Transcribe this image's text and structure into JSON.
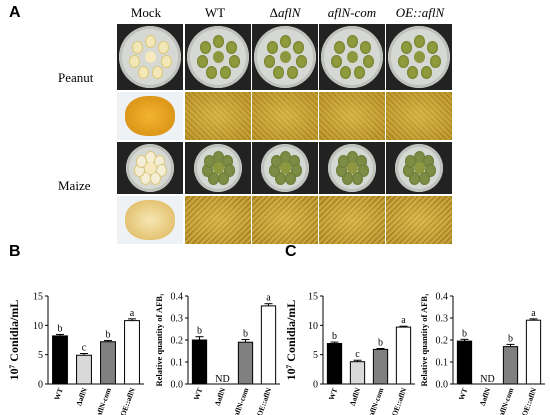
{
  "panels": {
    "a": "A",
    "b": "B",
    "c": "C"
  },
  "columns": [
    {
      "label": "Mock",
      "italic": false
    },
    {
      "label": "WT",
      "italic": false
    },
    {
      "label": "ΔaflN",
      "italic": true,
      "prefix": "Δ",
      "rest": "aflN"
    },
    {
      "label": "aflN-com",
      "italic": true
    },
    {
      "label": "OE::aflN",
      "italic": true
    }
  ],
  "rows": [
    "Peanut",
    "Maize"
  ],
  "chart_data": [
    {
      "panel": "B",
      "type": "bar",
      "ylabel": "10⁷ Conidia/mL",
      "categories": [
        "WT",
        "ΔaflN",
        "aflN-com",
        "OE::aflN"
      ],
      "values": [
        8.2,
        4.9,
        7.2,
        10.8
      ],
      "errors": [
        0.25,
        0.3,
        0.2,
        0.3
      ],
      "letters": [
        "b",
        "c",
        "b",
        "a"
      ],
      "fills": [
        "#000000",
        "#d9d9d9",
        "#808080",
        "#ffffff"
      ],
      "ylim": [
        0,
        15
      ],
      "yticks": [
        0,
        5,
        10,
        15
      ]
    },
    {
      "panel": "B",
      "type": "bar",
      "ylabel": "Relative quantity of AFB₁",
      "categories": [
        "WT",
        "ΔaflN",
        "aflN-com",
        "OE::aflN"
      ],
      "values": [
        0.2,
        null,
        0.19,
        0.355
      ],
      "errors": [
        0.015,
        0,
        0.012,
        0.01
      ],
      "letters": [
        "b",
        "",
        "b",
        "a"
      ],
      "labels_on_axis": [
        "",
        "ND",
        "",
        ""
      ],
      "fills": [
        "#000000",
        "#d9d9d9",
        "#808080",
        "#ffffff"
      ],
      "ylim": [
        0,
        0.4
      ],
      "yticks": [
        0.0,
        0.1,
        0.2,
        0.3,
        0.4
      ]
    },
    {
      "panel": "C",
      "type": "bar",
      "ylabel": "10⁷ Conidia/mL",
      "categories": [
        "WT",
        "ΔaflN",
        "aflN-com",
        "OE::aflN"
      ],
      "values": [
        6.9,
        3.8,
        5.9,
        9.7
      ],
      "errors": [
        0.25,
        0.25,
        0.15,
        0.15
      ],
      "letters": [
        "b",
        "c",
        "b",
        "a"
      ],
      "fills": [
        "#000000",
        "#d9d9d9",
        "#808080",
        "#ffffff"
      ],
      "ylim": [
        0,
        15
      ],
      "yticks": [
        0,
        5,
        10,
        15
      ]
    },
    {
      "panel": "C",
      "type": "bar",
      "ylabel": "Relative quantity of AFB₁",
      "categories": [
        "WT",
        "ΔaflN",
        "aflN-com",
        "OE::aflN"
      ],
      "values": [
        0.195,
        null,
        0.17,
        0.29
      ],
      "errors": [
        0.008,
        0,
        0.01,
        0.006
      ],
      "letters": [
        "b",
        "",
        "b",
        "a"
      ],
      "labels_on_axis": [
        "",
        "ND",
        "",
        ""
      ],
      "fills": [
        "#000000",
        "#d9d9d9",
        "#808080",
        "#ffffff"
      ],
      "ylim": [
        0,
        0.4
      ],
      "yticks": [
        0.0,
        0.1,
        0.2,
        0.3,
        0.4
      ]
    }
  ]
}
